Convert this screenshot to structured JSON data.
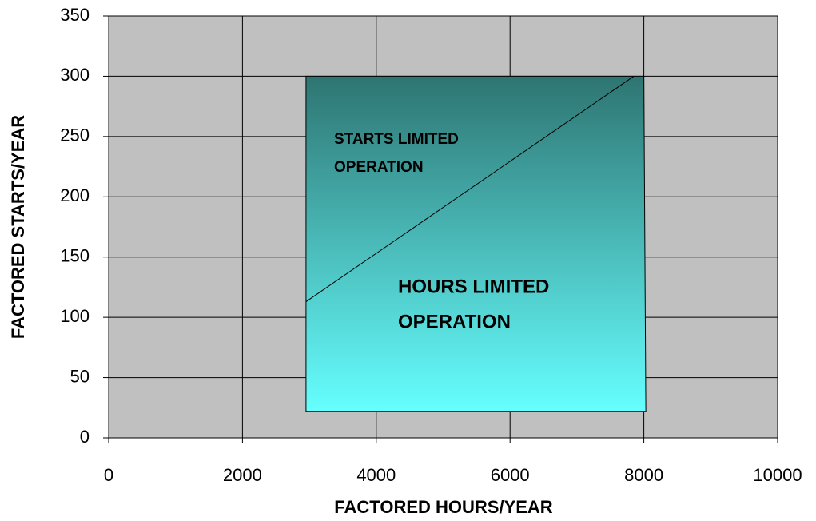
{
  "chart_data": {
    "type": "region",
    "xlabel": "FACTORED HOURS/YEAR",
    "ylabel": "FACTORED STARTS/YEAR",
    "xlim": [
      0,
      10000
    ],
    "ylim": [
      0,
      350
    ],
    "xticks": [
      0,
      2000,
      4000,
      6000,
      8000,
      10000
    ],
    "yticks": [
      0,
      50,
      100,
      150,
      200,
      250,
      300,
      350
    ],
    "grid": true,
    "background": "#c0c0c0",
    "region": {
      "x": [
        2950,
        8000,
        8030,
        2950
      ],
      "y": [
        300,
        300,
        22,
        22
      ],
      "gradient": [
        "#2e7572",
        "#66ffff"
      ]
    },
    "boundary": {
      "x": [
        2950,
        7850
      ],
      "y": [
        113,
        300
      ],
      "color": "#000000"
    },
    "annotations": [
      {
        "lines": [
          "STARTS LIMITED",
          "OPERATION"
        ]
      },
      {
        "lines": [
          "HOURS LIMITED",
          "OPERATION"
        ]
      }
    ]
  }
}
